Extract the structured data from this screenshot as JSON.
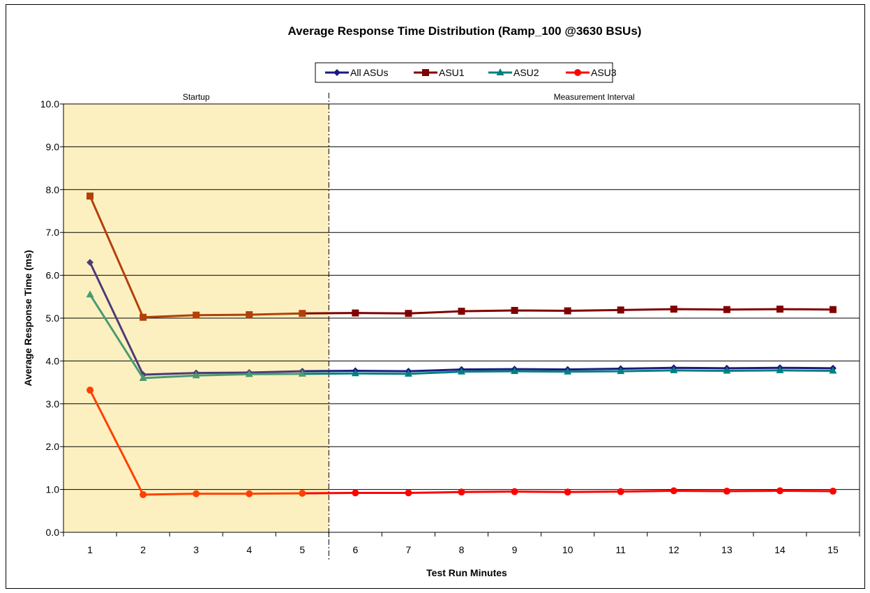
{
  "chart_data": {
    "type": "line",
    "title": "Average Response Time Distribution (Ramp_100 @3630 BSUs)",
    "xlabel": "Test Run Minutes",
    "ylabel": "Average Response Time (ms)",
    "x": [
      1,
      2,
      3,
      4,
      5,
      6,
      7,
      8,
      9,
      10,
      11,
      12,
      13,
      14,
      15
    ],
    "ylim": [
      0,
      10
    ],
    "y_ticks": [
      "0.0",
      "1.0",
      "2.0",
      "3.0",
      "4.0",
      "5.0",
      "6.0",
      "7.0",
      "8.0",
      "9.0",
      "10.0"
    ],
    "grid": true,
    "legend_position": "top",
    "regions": [
      {
        "label": "Startup",
        "from_minute": 1,
        "to_minute": 5,
        "color": "#fdf0c0"
      },
      {
        "label": "Measurement Interval",
        "from_minute": 6,
        "to_minute": 15,
        "color": "#ffffff"
      }
    ],
    "series": [
      {
        "name": "All ASUs",
        "marker": "diamond",
        "color": "#1a1a80",
        "startup_color": "#4b3c78",
        "values": [
          6.3,
          3.68,
          3.72,
          3.73,
          3.76,
          3.77,
          3.76,
          3.8,
          3.81,
          3.8,
          3.82,
          3.84,
          3.83,
          3.84,
          3.83
        ]
      },
      {
        "name": "ASU1",
        "marker": "square",
        "color": "#800000",
        "startup_color": "#b2400a",
        "values": [
          7.85,
          5.02,
          5.07,
          5.08,
          5.11,
          5.12,
          5.11,
          5.16,
          5.18,
          5.17,
          5.19,
          5.21,
          5.2,
          5.21,
          5.2
        ]
      },
      {
        "name": "ASU2",
        "marker": "triangle",
        "color": "#008080",
        "startup_color": "#4a9a72",
        "values": [
          5.55,
          3.6,
          3.66,
          3.69,
          3.7,
          3.71,
          3.7,
          3.75,
          3.76,
          3.75,
          3.76,
          3.78,
          3.77,
          3.78,
          3.77
        ]
      },
      {
        "name": "ASU3",
        "marker": "circle",
        "color": "#ff0000",
        "startup_color": "#ff4000",
        "values": [
          3.32,
          0.88,
          0.9,
          0.9,
          0.91,
          0.92,
          0.92,
          0.94,
          0.95,
          0.94,
          0.95,
          0.97,
          0.96,
          0.97,
          0.96
        ]
      }
    ]
  }
}
